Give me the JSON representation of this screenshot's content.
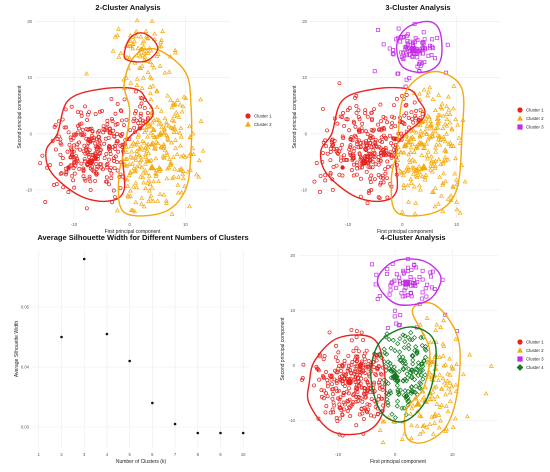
{
  "chart_data": [
    {
      "type": "scatter",
      "title": "2-Cluster Analysis",
      "xlabel": "First principal component",
      "ylabel": "Second principal component",
      "xlim": [
        -17,
        18
      ],
      "ylim": [
        -15,
        21
      ],
      "x_ticks": [
        -10,
        0,
        10
      ],
      "y_ticks": [
        -10,
        0,
        10,
        20
      ],
      "grid": true,
      "legend_position": "right",
      "series": [
        {
          "name": "Cluster 1",
          "color": "#e8231f",
          "marker": "circle",
          "centroids": [
            [
              -7,
              -5
            ],
            [
              -11,
              -6
            ]
          ],
          "hull": [
            [
              -13,
              0
            ],
            [
              -11,
              6
            ],
            [
              -5,
              8
            ],
            [
              1,
              8
            ],
            [
              3,
              6
            ],
            [
              4,
              3
            ],
            [
              -1,
              -2
            ],
            [
              -1,
              -10
            ],
            [
              -4,
              -12
            ],
            [
              -9,
              -11
            ],
            [
              -14,
              -7
            ],
            [
              -15,
              -3
            ]
          ]
        },
        {
          "name": "Cluster 2",
          "color": "#f4a90d",
          "marker": "triangle",
          "centroids": [
            [
              4,
              -6
            ],
            [
              2,
              15
            ]
          ],
          "hull": [
            [
              -1,
              9
            ],
            [
              1,
              14
            ],
            [
              5,
              15
            ],
            [
              10,
              11
            ],
            [
              11,
              5
            ],
            [
              11,
              -3
            ],
            [
              10,
              -10
            ],
            [
              6,
              -14
            ],
            [
              -1,
              -14
            ],
            [
              -2,
              -8
            ],
            [
              -1,
              -3
            ],
            [
              0,
              4
            ]
          ]
        }
      ],
      "extra_hull": {
        "color": "#e8231f",
        "points": [
          [
            -1,
            14
          ],
          [
            0,
            17
          ],
          [
            2,
            18
          ],
          [
            4,
            17
          ],
          [
            5,
            15
          ],
          [
            3,
            13
          ],
          [
            0,
            13
          ]
        ]
      }
    },
    {
      "type": "scatter",
      "title": "3-Cluster Analysis",
      "xlabel": "First principal component",
      "ylabel": "Second principal component",
      "xlim": [
        -17,
        18
      ],
      "ylim": [
        -15,
        21
      ],
      "x_ticks": [
        -10,
        0,
        10
      ],
      "y_ticks": [
        -10,
        0,
        10,
        20
      ],
      "grid": true,
      "legend_position": "right",
      "series": [
        {
          "name": "Cluster 1",
          "color": "#e8231f",
          "marker": "circle",
          "centroids": [
            [
              -7,
              -5
            ],
            [
              -11,
              -6
            ]
          ],
          "hull": [
            [
              -13,
              0
            ],
            [
              -11,
              6
            ],
            [
              -5,
              8
            ],
            [
              1,
              8
            ],
            [
              3,
              6
            ],
            [
              4,
              3
            ],
            [
              -1,
              -2
            ],
            [
              -1,
              -10
            ],
            [
              -4,
              -12
            ],
            [
              -9,
              -11
            ],
            [
              -14,
              -7
            ],
            [
              -15,
              -3
            ]
          ]
        },
        {
          "name": "Cluster 2",
          "color": "#f4a90d",
          "marker": "triangle",
          "centroids": [
            [
              4,
              -6
            ]
          ],
          "hull": [
            [
              0,
              6
            ],
            [
              3,
              10
            ],
            [
              7,
              11
            ],
            [
              11,
              8
            ],
            [
              11,
              0
            ],
            [
              10,
              -10
            ],
            [
              6,
              -14
            ],
            [
              -1,
              -14
            ],
            [
              -2,
              -8
            ],
            [
              -1,
              -3
            ]
          ]
        },
        {
          "name": "Cluster 3",
          "color": "#c42ee6",
          "marker": "square",
          "centroids": [
            [
              2,
              15
            ]
          ],
          "hull": [
            [
              -1,
              16
            ],
            [
              1,
              19
            ],
            [
              5,
              20
            ],
            [
              7,
              18
            ],
            [
              7,
              13
            ],
            [
              4,
              11
            ],
            [
              0,
              12
            ]
          ]
        }
      ]
    },
    {
      "type": "scatter",
      "title": "Average Silhouette Width for Different Numbers of Clusters",
      "xlabel": "Number of Clusters (k)",
      "ylabel": "Average Silhouette Width",
      "x": [
        2,
        3,
        4,
        5,
        6,
        7,
        8,
        9,
        10
      ],
      "y": [
        0.045,
        0.058,
        0.0455,
        0.041,
        0.034,
        0.0305,
        0.029,
        0.029,
        0.029
      ],
      "xlim": [
        0.7,
        10.3
      ],
      "ylim": [
        0.0265,
        0.0595
      ],
      "x_ticks": [
        1,
        2,
        3,
        4,
        5,
        6,
        7,
        8,
        9,
        10
      ],
      "y_ticks": [
        0.03,
        0.04,
        0.05
      ],
      "y_tick_labels": [
        "0.03",
        "0.04",
        "0.05"
      ],
      "grid": true
    },
    {
      "type": "scatter",
      "title": "4-Cluster Analysis",
      "xlabel": "First principal component",
      "ylabel": "Second principal component",
      "xlim": [
        -17,
        18
      ],
      "ylim": [
        -15,
        21
      ],
      "x_ticks": [
        -10,
        0,
        10
      ],
      "y_ticks": [
        -10,
        0,
        10,
        20
      ],
      "grid": true,
      "legend_position": "right",
      "series": [
        {
          "name": "Cluster 1",
          "color": "#e8231f",
          "marker": "circle",
          "centroids": [
            [
              -8,
              -3
            ]
          ],
          "hull": [
            [
              -14,
              1
            ],
            [
              -10,
              5
            ],
            [
              -4,
              5
            ],
            [
              -2,
              0
            ],
            [
              -2,
              -8
            ],
            [
              -5,
              -12
            ],
            [
              -11,
              -12
            ],
            [
              -15,
              -7
            ],
            [
              -15,
              -3
            ]
          ]
        },
        {
          "name": "Cluster 2",
          "color": "#f4a90d",
          "marker": "triangle",
          "centroids": [
            [
              4,
              -7
            ]
          ],
          "hull": [
            [
              3,
              10
            ],
            [
              7,
              11
            ],
            [
              11,
              5
            ],
            [
              11,
              -4
            ],
            [
              9,
              -11
            ],
            [
              5,
              -14
            ],
            [
              2,
              -13
            ],
            [
              2,
              -8
            ],
            [
              5,
              -4
            ],
            [
              6,
              3
            ]
          ]
        },
        {
          "name": "Cluster 3",
          "color": "#c42ee6",
          "marker": "square",
          "centroids": [
            [
              2,
              15
            ]
          ],
          "hull": [
            [
              -3,
              16
            ],
            [
              0,
              19
            ],
            [
              5,
              19
            ],
            [
              8,
              16
            ],
            [
              6,
              12
            ],
            [
              1,
              11
            ],
            [
              -2,
              13
            ]
          ]
        },
        {
          "name": "Cluster 4",
          "color": "#0f7a1e",
          "marker": "diamond",
          "centroids": [
            [
              0,
              -2
            ]
          ],
          "hull": [
            [
              -2,
              5
            ],
            [
              3,
              7
            ],
            [
              7,
              4
            ],
            [
              6,
              -5
            ],
            [
              2,
              -10
            ],
            [
              -2,
              -9
            ],
            [
              -4,
              -4
            ],
            [
              -4,
              1
            ]
          ]
        }
      ]
    }
  ]
}
